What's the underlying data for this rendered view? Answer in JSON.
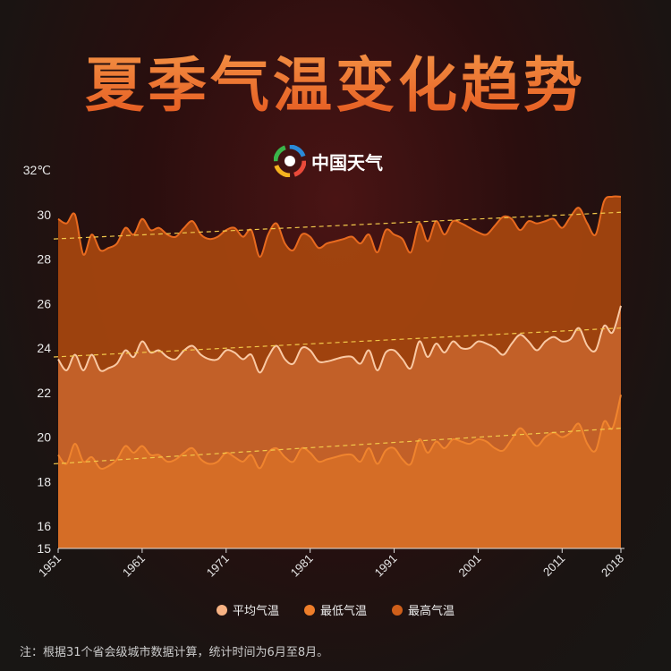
{
  "title": "夏季气温变化趋势",
  "logo": {
    "text": "中国天气",
    "icon": "china-weather-swirl-logo"
  },
  "note": "注：根据31个省会级城市数据计算，统计时间为6月至8月。",
  "colors": {
    "avg": "#f7b283",
    "min": "#ee7e2a",
    "max": "#cf5f1a",
    "trend": "#f2c84a"
  },
  "chart_data": {
    "type": "area",
    "title": "夏季气温变化趋势",
    "ylabel": "32℃",
    "ylim": [
      15,
      32
    ],
    "xlim": [
      1951,
      2018
    ],
    "yticks": [
      "15",
      "16",
      "18",
      "20",
      "22",
      "24",
      "26",
      "28",
      "30",
      "32℃"
    ],
    "ytick_values": [
      15,
      16,
      18,
      20,
      22,
      24,
      26,
      28,
      30,
      32
    ],
    "xticks": [
      "1951",
      "1961",
      "1971",
      "1981",
      "1991",
      "2001",
      "2011",
      "2018"
    ],
    "xtick_values": [
      1951,
      1961,
      1971,
      1981,
      1991,
      2001,
      2011,
      2018
    ],
    "grid": false,
    "legend_placement": "bottom",
    "start_year": 1951,
    "series": [
      {
        "name": "平均气温",
        "key": "avg",
        "values": [
          23.5,
          23.0,
          23.7,
          23.0,
          23.7,
          23.0,
          23.1,
          23.3,
          23.9,
          23.6,
          24.3,
          23.8,
          23.9,
          23.6,
          23.5,
          23.9,
          24.1,
          23.7,
          23.5,
          23.5,
          23.9,
          23.8,
          23.5,
          23.7,
          22.9,
          23.6,
          24.1,
          23.5,
          23.3,
          24.0,
          23.9,
          23.4,
          23.4,
          23.5,
          23.6,
          23.6,
          23.3,
          23.9,
          23.0,
          23.8,
          23.9,
          23.5,
          23.1,
          24.3,
          23.6,
          24.2,
          23.8,
          24.3,
          24.0,
          24.0,
          24.3,
          24.2,
          24.0,
          23.7,
          24.2,
          24.6,
          24.3,
          23.9,
          24.3,
          24.5,
          24.3,
          24.4,
          24.9,
          24.1,
          23.9,
          25.0,
          24.7,
          25.9
        ],
        "trend": [
          23.6,
          24.9
        ]
      },
      {
        "name": "最低气温",
        "key": "min",
        "values": [
          19.2,
          18.8,
          19.7,
          18.9,
          19.1,
          18.6,
          18.7,
          19.0,
          19.6,
          19.3,
          19.6,
          19.2,
          19.2,
          18.9,
          19.0,
          19.3,
          19.5,
          19.0,
          18.8,
          18.9,
          19.3,
          19.1,
          18.9,
          19.2,
          18.6,
          19.3,
          19.5,
          19.1,
          18.9,
          19.5,
          19.3,
          18.9,
          19.0,
          19.1,
          19.2,
          19.2,
          18.9,
          19.5,
          18.8,
          19.4,
          19.5,
          19.0,
          18.8,
          19.9,
          19.3,
          19.8,
          19.5,
          19.9,
          19.8,
          19.7,
          19.9,
          19.8,
          19.5,
          19.4,
          19.9,
          20.4,
          20.0,
          19.6,
          20.0,
          20.2,
          20.0,
          20.2,
          20.6,
          19.7,
          19.4,
          20.7,
          20.4,
          21.9
        ],
        "trend": [
          18.8,
          20.4
        ]
      },
      {
        "name": "最高气温",
        "key": "max",
        "values": [
          29.8,
          29.6,
          30.0,
          28.2,
          29.1,
          28.4,
          28.5,
          28.7,
          29.4,
          29.1,
          29.8,
          29.3,
          29.4,
          29.1,
          29.0,
          29.4,
          29.7,
          29.1,
          28.9,
          29.0,
          29.3,
          29.4,
          29.0,
          29.3,
          28.1,
          29.1,
          29.6,
          28.7,
          28.4,
          29.1,
          29.0,
          28.5,
          28.7,
          28.8,
          28.9,
          29.0,
          28.7,
          29.1,
          28.3,
          29.3,
          29.1,
          28.9,
          28.3,
          29.6,
          28.8,
          29.7,
          29.1,
          29.7,
          29.6,
          29.4,
          29.2,
          29.1,
          29.5,
          29.9,
          29.8,
          29.3,
          29.7,
          29.6,
          29.7,
          29.8,
          29.4,
          29.9,
          30.3,
          29.6,
          29.1,
          30.6,
          30.8,
          30.8
        ],
        "trend": [
          28.9,
          30.1
        ]
      }
    ]
  }
}
